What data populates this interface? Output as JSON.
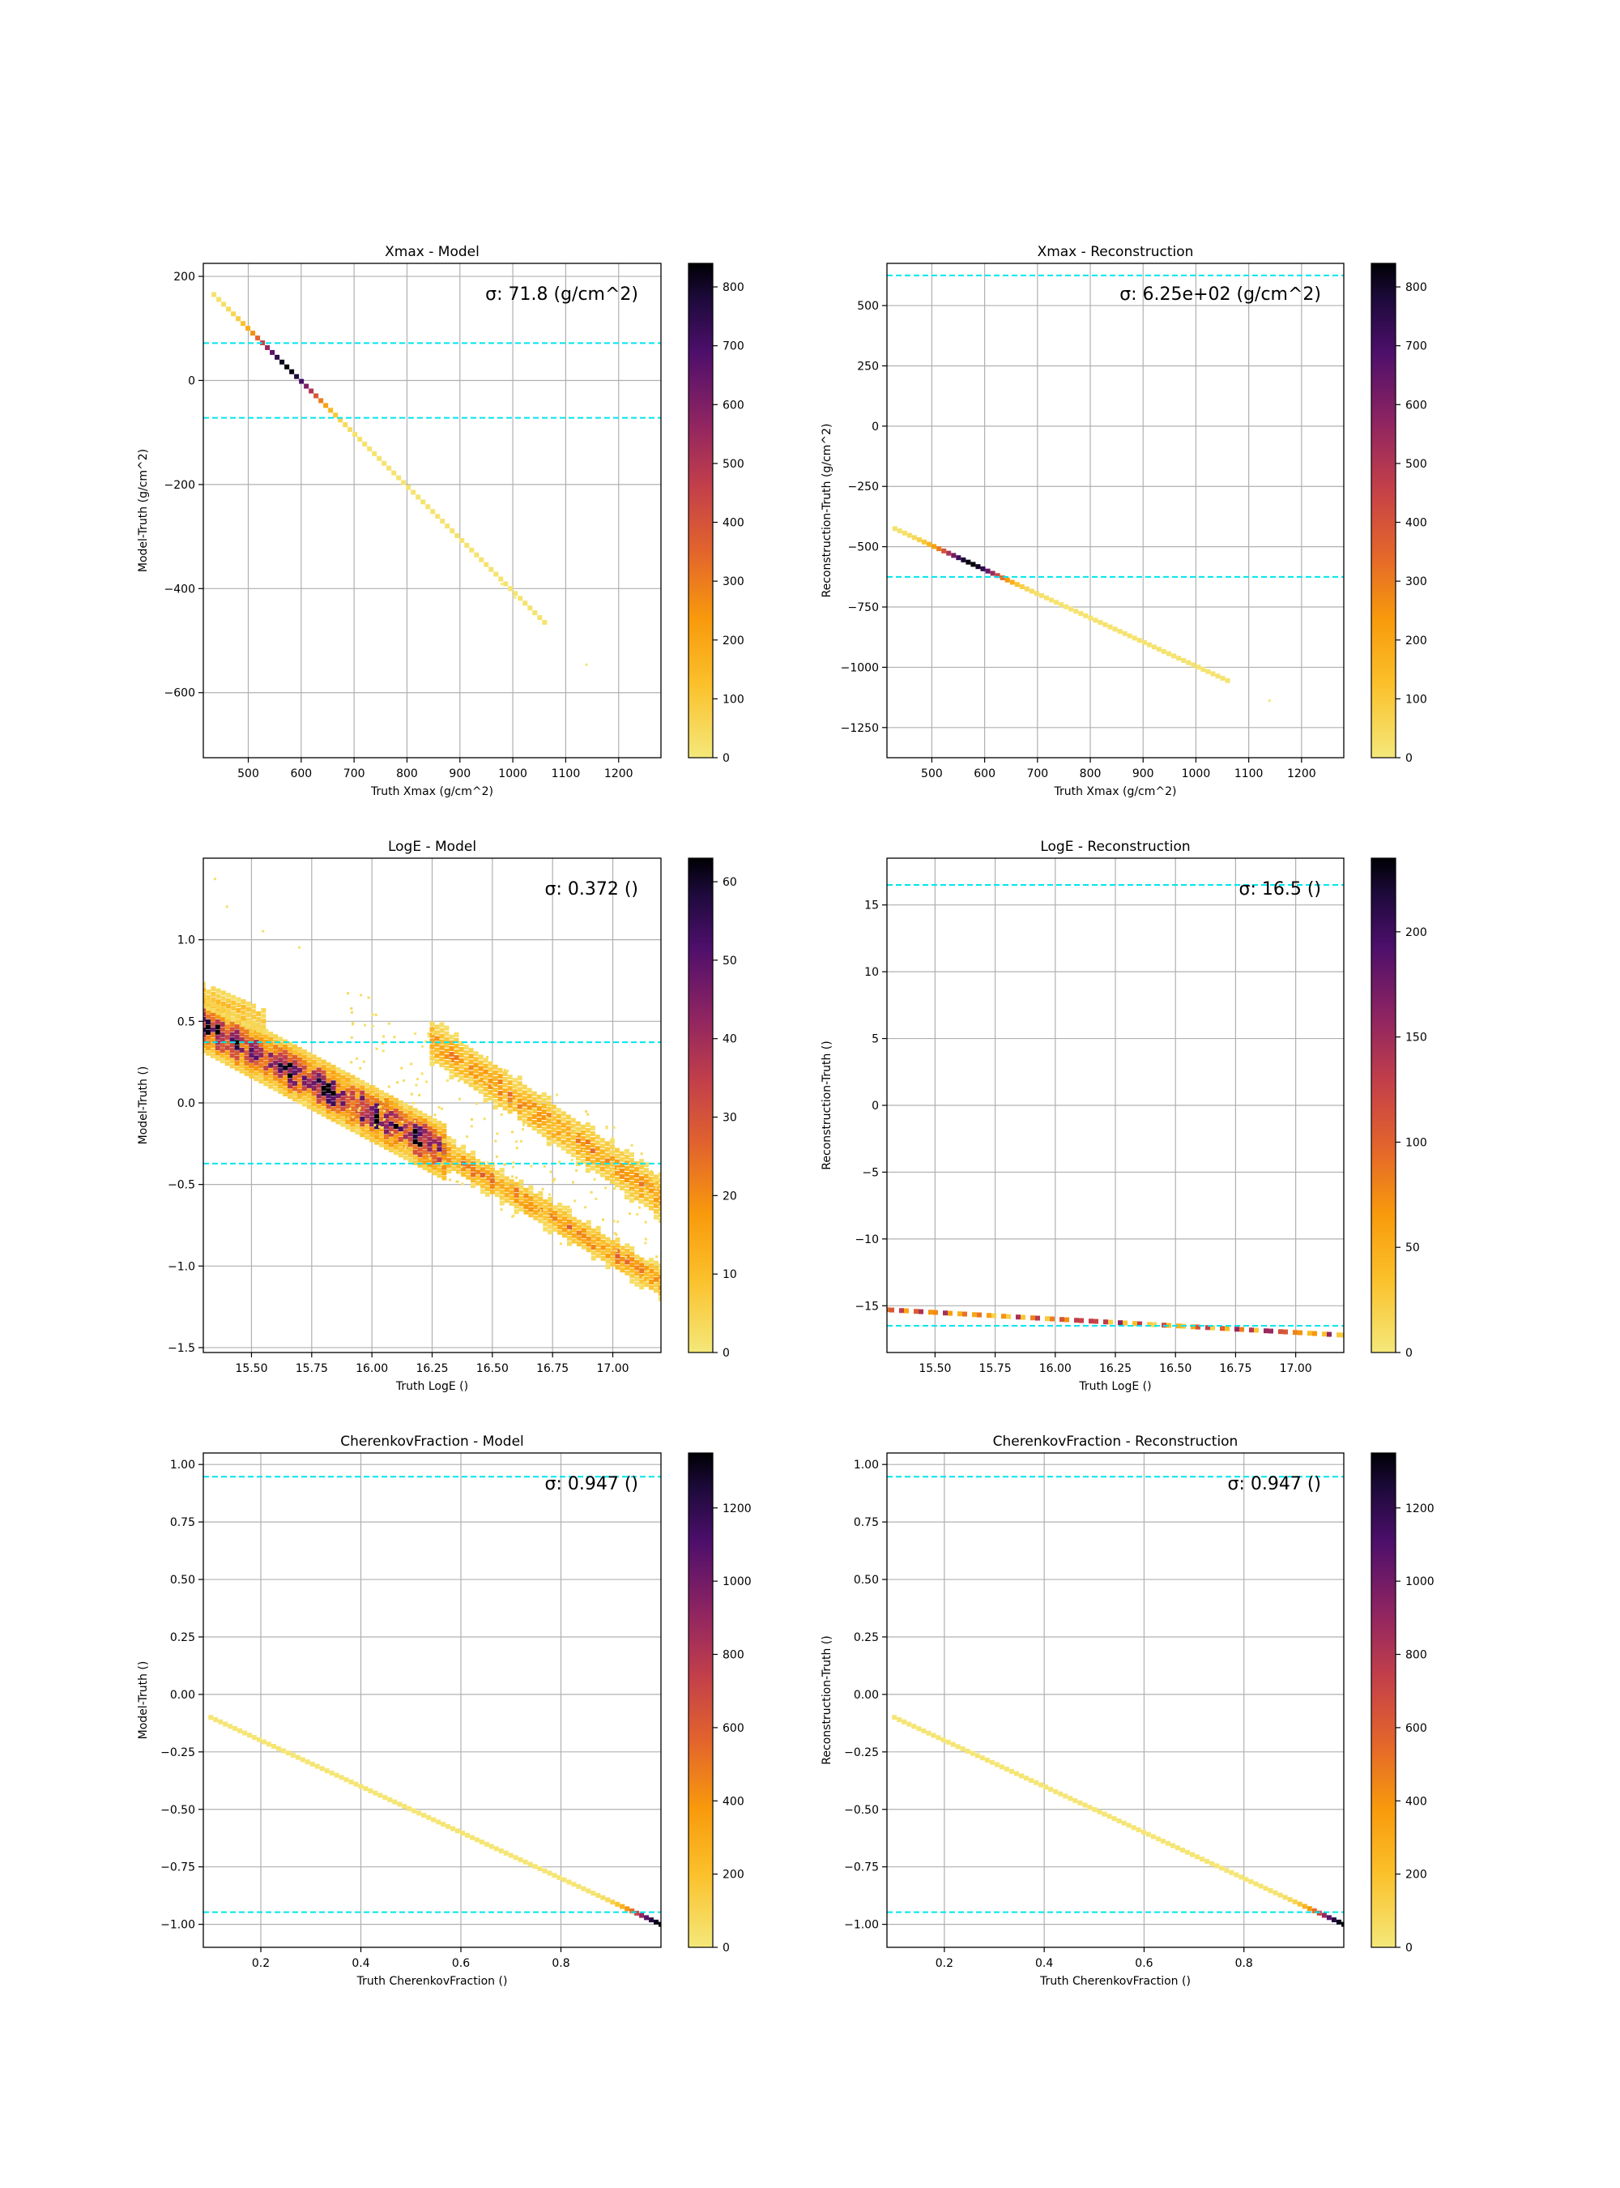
{
  "chart_data": [
    {
      "type": "heatmap",
      "title": "Xmax - Model",
      "xlabel": "Truth Xmax (g/cm^2)",
      "ylabel": "Model-Truth (g/cm^2)",
      "annotation": "σ: 71.8 (g/cm^2)",
      "sigma": 71.8,
      "xlim": [
        415,
        1280
      ],
      "ylim": [
        -725,
        225
      ],
      "xticks": [
        500,
        600,
        700,
        800,
        900,
        1000,
        1100,
        1200
      ],
      "xtick_labels": [
        "500",
        "600",
        "700",
        "800",
        "900",
        "1000",
        "1100",
        "1200"
      ],
      "yticks": [
        200,
        0,
        -200,
        -400,
        -600
      ],
      "ytick_labels": [
        "200",
        "0",
        "−200",
        "−400",
        "−600"
      ],
      "hlines": [
        71.8,
        -71.8
      ],
      "colorbar": {
        "min": 0,
        "max": 840,
        "ticks": [
          0,
          100,
          200,
          300,
          400,
          500,
          600,
          700,
          800
        ],
        "tick_labels": [
          "0",
          "100",
          "200",
          "300",
          "400",
          "500",
          "600",
          "700",
          "800"
        ]
      },
      "bands": [
        {
          "x0": 435,
          "y0": 165,
          "x1": 1060,
          "y1": -465,
          "peak_x": 575,
          "peak_width": 60,
          "peak_count": 840,
          "base_count": 15
        }
      ],
      "outliers": [
        [
          1140,
          -547
        ],
        [
          1005,
          -418
        ],
        [
          980,
          -392
        ]
      ],
      "grid": true
    },
    {
      "type": "heatmap",
      "title": "Xmax - Reconstruction",
      "xlabel": "Truth Xmax (g/cm^2)",
      "ylabel": "Reconstruction-Truth (g/cm^2)",
      "annotation": "σ: 6.25e+02 (g/cm^2)",
      "sigma": 625,
      "xlim": [
        415,
        1280
      ],
      "ylim": [
        -1375,
        675
      ],
      "xticks": [
        500,
        600,
        700,
        800,
        900,
        1000,
        1100,
        1200
      ],
      "xtick_labels": [
        "500",
        "600",
        "700",
        "800",
        "900",
        "1000",
        "1100",
        "1200"
      ],
      "yticks": [
        500,
        250,
        0,
        -250,
        -500,
        -750,
        -1000,
        -1250
      ],
      "ytick_labels": [
        "500",
        "250",
        "0",
        "−250",
        "−500",
        "−750",
        "−1000",
        "−1250"
      ],
      "hlines": [
        625,
        -625
      ],
      "colorbar": {
        "min": 0,
        "max": 840,
        "ticks": [
          0,
          100,
          200,
          300,
          400,
          500,
          600,
          700,
          800
        ],
        "tick_labels": [
          "0",
          "100",
          "200",
          "300",
          "400",
          "500",
          "600",
          "700",
          "800"
        ]
      },
      "bands": [
        {
          "x0": 430,
          "y0": -425,
          "x1": 1060,
          "y1": -1055,
          "peak_x": 575,
          "peak_width": 60,
          "peak_count": 840,
          "base_count": 15
        }
      ],
      "outliers": [
        [
          1140,
          -1140
        ],
        [
          1005,
          -1005
        ]
      ],
      "grid": true
    },
    {
      "type": "heatmap",
      "title": "LogE - Model",
      "xlabel": "Truth LogE ()",
      "ylabel": "Model-Truth ()",
      "annotation": "σ: 0.372 ()",
      "sigma": 0.372,
      "xlim": [
        15.3,
        17.2
      ],
      "ylim": [
        -1.53,
        1.5
      ],
      "xticks": [
        15.5,
        15.75,
        16.0,
        16.25,
        16.5,
        16.75,
        17.0
      ],
      "xtick_labels": [
        "15.50",
        "15.75",
        "16.00",
        "16.25",
        "16.50",
        "16.75",
        "17.00"
      ],
      "yticks": [
        1.0,
        0.5,
        0.0,
        -0.5,
        -1.0,
        -1.5
      ],
      "ytick_labels": [
        "1.0",
        "0.5",
        "0.0",
        "−0.5",
        "−1.0",
        "−1.5"
      ],
      "hlines": [
        0.372,
        -0.372
      ],
      "colorbar": {
        "min": 0,
        "max": 63,
        "ticks": [
          0,
          10,
          20,
          30,
          40,
          50,
          60
        ],
        "tick_labels": [
          "0",
          "10",
          "20",
          "30",
          "40",
          "50",
          "60"
        ]
      },
      "bands": [
        {
          "x0": 15.3,
          "y0": 0.48,
          "x1": 16.3,
          "y1": -0.3,
          "width": 0.16,
          "peak_count": 55,
          "base_count": 12
        },
        {
          "x0": 16.3,
          "y0": -0.3,
          "x1": 17.2,
          "y1": -1.1,
          "width": 0.1,
          "peak_count": 22,
          "base_count": 8
        },
        {
          "x0": 16.25,
          "y0": 0.38,
          "x1": 17.2,
          "y1": -0.58,
          "width": 0.14,
          "peak_count": 18,
          "base_count": 8
        },
        {
          "x0": 15.3,
          "y0": 0.66,
          "x1": 15.55,
          "y1": 0.5,
          "width": 0.1,
          "peak_count": 10,
          "base_count": 6
        }
      ],
      "scatter_region": {
        "x": [
          15.9,
          17.2
        ],
        "y_center_at_x0": 0.3,
        "y_center_at_x1": -0.75,
        "spread": 0.45,
        "count": 3
      },
      "outliers": [
        [
          15.35,
          1.37
        ],
        [
          15.4,
          1.2
        ],
        [
          15.55,
          1.05
        ],
        [
          15.7,
          0.95
        ]
      ],
      "grid": true
    },
    {
      "type": "heatmap",
      "title": "LogE - Reconstruction",
      "xlabel": "Truth LogE ()",
      "ylabel": "Reconstruction-Truth ()",
      "annotation": "σ: 16.5 ()",
      "sigma": 16.5,
      "xlim": [
        15.3,
        17.2
      ],
      "ylim": [
        -18.5,
        18.5
      ],
      "xticks": [
        15.5,
        15.75,
        16.0,
        16.25,
        16.5,
        16.75,
        17.0
      ],
      "xtick_labels": [
        "15.50",
        "15.75",
        "16.00",
        "16.25",
        "16.50",
        "16.75",
        "17.00"
      ],
      "yticks": [
        15,
        10,
        5,
        0,
        -5,
        -10,
        -15
      ],
      "ytick_labels": [
        "15",
        "10",
        "5",
        "0",
        "−5",
        "−10",
        "−15"
      ],
      "hlines": [
        16.5,
        -16.5
      ],
      "colorbar": {
        "min": 0,
        "max": 235,
        "ticks": [
          0,
          50,
          100,
          150,
          200
        ],
        "tick_labels": [
          "0",
          "50",
          "100",
          "150",
          "200"
        ]
      },
      "bands": [
        {
          "x0": 15.3,
          "y0": -15.3,
          "x1": 17.2,
          "y1": -17.2,
          "dashed": true,
          "peak_count": 160,
          "base_count": 15
        }
      ],
      "outliers": [],
      "grid": true
    },
    {
      "type": "heatmap",
      "title": "CherenkovFraction - Model",
      "xlabel": "Truth CherenkovFraction ()",
      "ylabel": "Model-Truth ()",
      "annotation": "σ: 0.947 ()",
      "sigma": 0.947,
      "xlim": [
        0.085,
        1.0
      ],
      "ylim": [
        -1.1,
        1.05
      ],
      "xticks": [
        0.2,
        0.4,
        0.6,
        0.8
      ],
      "xtick_labels": [
        "0.2",
        "0.4",
        "0.6",
        "0.8"
      ],
      "yticks": [
        1.0,
        0.75,
        0.5,
        0.25,
        0.0,
        -0.25,
        -0.5,
        -0.75,
        -1.0
      ],
      "ytick_labels": [
        "1.00",
        "0.75",
        "0.50",
        "0.25",
        "0.00",
        "−0.25",
        "−0.50",
        "−0.75",
        "−1.00"
      ],
      "hlines": [
        0.947,
        -0.947
      ],
      "colorbar": {
        "min": 0,
        "max": 1350,
        "ticks": [
          0,
          200,
          400,
          600,
          800,
          1000,
          1200
        ],
        "tick_labels": [
          "0",
          "200",
          "400",
          "600",
          "800",
          "1000",
          "1200"
        ]
      },
      "bands": [
        {
          "x0": 0.1,
          "y0": -0.1,
          "x1": 1.0,
          "y1": -1.0,
          "peak_x": 1.0,
          "peak_width": 0.06,
          "peak_count": 1350,
          "base_count": 15
        }
      ],
      "outliers": [],
      "grid": true
    },
    {
      "type": "heatmap",
      "title": "CherenkovFraction - Reconstruction",
      "xlabel": "Truth CherenkovFraction ()",
      "ylabel": "Reconstruction-Truth ()",
      "annotation": "σ: 0.947 ()",
      "sigma": 0.947,
      "xlim": [
        0.085,
        1.0
      ],
      "ylim": [
        -1.1,
        1.05
      ],
      "xticks": [
        0.2,
        0.4,
        0.6,
        0.8
      ],
      "xtick_labels": [
        "0.2",
        "0.4",
        "0.6",
        "0.8"
      ],
      "yticks": [
        1.0,
        0.75,
        0.5,
        0.25,
        0.0,
        -0.25,
        -0.5,
        -0.75,
        -1.0
      ],
      "ytick_labels": [
        "1.00",
        "0.75",
        "0.50",
        "0.25",
        "0.00",
        "−0.25",
        "−0.50",
        "−0.75",
        "−1.00"
      ],
      "hlines": [
        0.947,
        -0.947
      ],
      "colorbar": {
        "min": 0,
        "max": 1350,
        "ticks": [
          0,
          200,
          400,
          600,
          800,
          1000,
          1200
        ],
        "tick_labels": [
          "0",
          "200",
          "400",
          "600",
          "800",
          "1000",
          "1200"
        ]
      },
      "bands": [
        {
          "x0": 0.1,
          "y0": -0.1,
          "x1": 1.0,
          "y1": -1.0,
          "peak_x": 1.0,
          "peak_width": 0.06,
          "peak_count": 1350,
          "base_count": 15
        }
      ],
      "outliers": [],
      "grid": true
    }
  ],
  "colors": {
    "colormap": "inferno_r",
    "sigma_line": "#00e5ee",
    "grid": "#b0b0b0"
  }
}
